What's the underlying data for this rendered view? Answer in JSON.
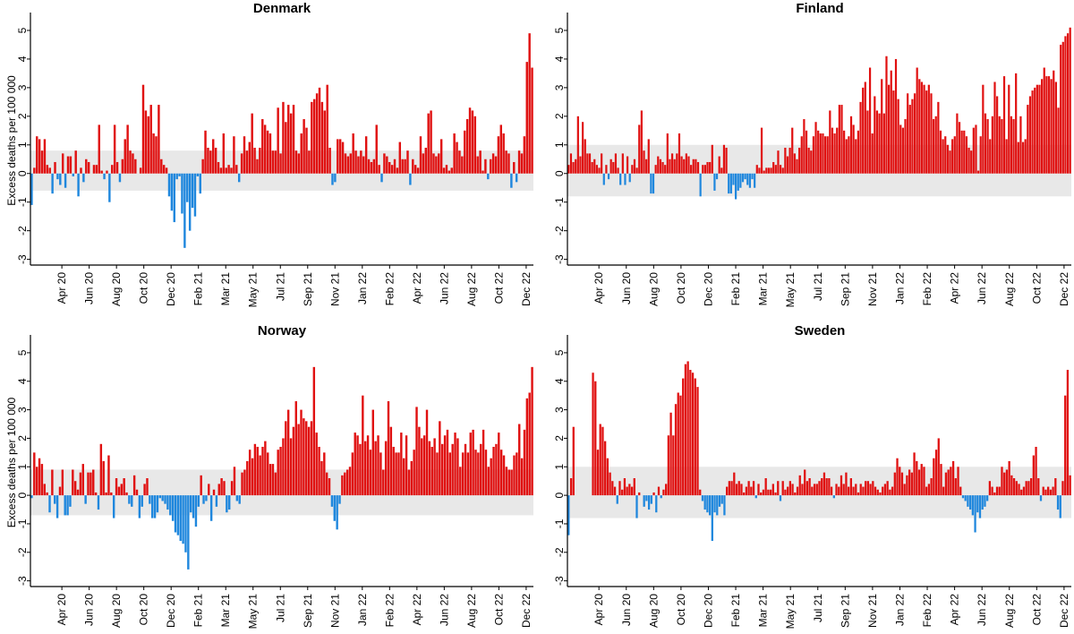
{
  "colors": {
    "positive": "#e01010",
    "negative": "#1f87dd",
    "band": "#e8e8e8",
    "axis": "#000000"
  },
  "chart_data": [
    {
      "type": "bar",
      "title": "Denmark",
      "ylabel": "Excess deaths per 100 000",
      "xlabel": "",
      "ylim": [
        -3.2,
        5.5
      ],
      "yticks": [
        "-3",
        "-2",
        "-1",
        "0",
        "1",
        "2",
        "3",
        "4",
        "5"
      ],
      "xticks": [
        "Apr 20",
        "Jun 20",
        "Aug 20",
        "Oct 20",
        "Dec 20",
        "Feb 21",
        "Mar 21",
        "May 21",
        "Jul 21",
        "Sep 21",
        "Nov 21",
        "Jan 22",
        "Feb 22",
        "Apr 22",
        "Jun 22",
        "Aug 22",
        "Oct 22",
        "Dec 22"
      ],
      "band": {
        "upper": 0.8,
        "lower": -0.6
      },
      "values": [
        -1.1,
        0.2,
        1.3,
        1.2,
        0.8,
        1.2,
        0.3,
        0.2,
        -0.7,
        0.4,
        -0.2,
        -0.4,
        0.7,
        -0.5,
        0.6,
        0.6,
        -0.1,
        0.8,
        -0.8,
        0.2,
        -0.3,
        0.5,
        0.4,
        0.0,
        0.3,
        0.3,
        1.7,
        0.1,
        -0.2,
        0.1,
        -1.0,
        0.3,
        1.7,
        0.4,
        -0.3,
        0.5,
        1.2,
        1.7,
        0.8,
        0.7,
        0.5,
        0.0,
        0.2,
        3.1,
        2.2,
        2.0,
        2.4,
        1.4,
        1.3,
        2.4,
        0.5,
        0.3,
        0.2,
        -0.8,
        -1.3,
        -1.7,
        -0.2,
        -0.1,
        -1.4,
        -2.6,
        -1.0,
        -2.0,
        -1.2,
        -1.5,
        -0.1,
        -0.7,
        0.5,
        1.5,
        0.9,
        0.8,
        1.2,
        0.9,
        0.4,
        0.2,
        1.4,
        0.2,
        0.3,
        0.2,
        1.3,
        0.3,
        -0.3,
        0.7,
        1.3,
        0.8,
        1.1,
        2.1,
        0.9,
        0.5,
        0.9,
        1.9,
        1.7,
        1.5,
        1.4,
        0.8,
        0.8,
        2.3,
        0.7,
        2.5,
        1.8,
        2.4,
        2.1,
        2.4,
        0.8,
        0.7,
        1.4,
        1.9,
        1.6,
        0.8,
        2.5,
        2.6,
        2.8,
        3.0,
        2.5,
        2.2,
        3.1,
        0.9,
        -0.4,
        -0.3,
        1.2,
        1.2,
        1.1,
        0.7,
        0.6,
        0.7,
        1.4,
        0.8,
        0.6,
        0.8,
        0.6,
        1.3,
        0.5,
        0.4,
        0.5,
        1.7,
        0.3,
        -0.3,
        0.7,
        0.6,
        0.4,
        0.3,
        0.5,
        0.2,
        1.1,
        0.5,
        0.5,
        0.8,
        -0.4,
        0.5,
        0.3,
        0.2,
        1.3,
        0.7,
        0.9,
        2.1,
        2.2,
        0.7,
        0.6,
        0.7,
        1.2,
        0.2,
        0.3,
        0.1,
        0.2,
        1.4,
        1.1,
        0.8,
        0.6,
        1.5,
        1.9,
        2.3,
        2.2,
        2.0,
        0.6,
        0.8,
        0.1,
        0.5,
        -0.2,
        0.5,
        0.7,
        0.6,
        1.3,
        1.7,
        1.4,
        0.8,
        0.7,
        -0.5,
        0.4,
        -0.3,
        0.8,
        0.7,
        1.3,
        3.9,
        4.9,
        3.7
      ]
    },
    {
      "type": "bar",
      "title": "Finland",
      "ylabel": "",
      "xlabel": "",
      "ylim": [
        -3.2,
        5.5
      ],
      "yticks": [
        "-3",
        "-2",
        "-1",
        "0",
        "1",
        "2",
        "3",
        "4",
        "5"
      ],
      "xticks": [
        "Apr 20",
        "Jun 20",
        "Aug 20",
        "Oct 20",
        "Dec 20",
        "Feb 21",
        "Mar 21",
        "May 21",
        "Jul 21",
        "Sep 21",
        "Nov 21",
        "Jan 22",
        "Feb 22",
        "Apr 22",
        "Jun 22",
        "Aug 22",
        "Oct 22",
        "Dec 22"
      ],
      "band": {
        "upper": 1.0,
        "lower": -0.8
      },
      "values": [
        0.3,
        0.7,
        0.4,
        0.5,
        2.0,
        0.6,
        1.8,
        1.2,
        0.7,
        0.7,
        0.4,
        0.5,
        0.3,
        0.2,
        0.7,
        -0.4,
        0.3,
        -0.2,
        0.5,
        0.4,
        0.7,
        0.2,
        -0.4,
        0.7,
        -0.4,
        0.6,
        -0.3,
        0.3,
        0.5,
        0.2,
        1.7,
        2.2,
        0.8,
        0.5,
        1.2,
        -0.7,
        -0.7,
        0.3,
        0.6,
        0.5,
        0.4,
        0.3,
        1.4,
        0.5,
        0.7,
        0.5,
        0.7,
        1.4,
        0.6,
        0.5,
        0.7,
        0.6,
        0.3,
        0.5,
        0.5,
        0.4,
        -0.8,
        0.3,
        0.3,
        0.4,
        0.4,
        1.0,
        -0.6,
        -0.2,
        0.6,
        0.2,
        1.0,
        0.9,
        -0.7,
        -0.7,
        -0.4,
        -0.9,
        -0.6,
        -0.5,
        -0.3,
        -0.2,
        -0.4,
        -0.5,
        -0.2,
        -0.5,
        0.3,
        0.2,
        1.6,
        0.1,
        0.2,
        0.2,
        0.2,
        0.4,
        0.3,
        0.8,
        0.3,
        0.2,
        0.9,
        0.6,
        0.9,
        1.6,
        0.7,
        0.5,
        0.9,
        1.3,
        1.9,
        1.5,
        0.9,
        0.8,
        1.3,
        1.8,
        1.5,
        1.4,
        1.4,
        1.3,
        1.3,
        2.2,
        1.6,
        1.4,
        1.6,
        2.4,
        2.4,
        1.5,
        1.2,
        1.3,
        2.0,
        1.7,
        1.2,
        1.5,
        2.5,
        3.0,
        3.2,
        2.2,
        3.7,
        1.4,
        2.7,
        2.2,
        2.1,
        3.3,
        2.1,
        4.1,
        3.1,
        3.6,
        2.9,
        4.0,
        2.6,
        1.7,
        1.6,
        1.9,
        2.8,
        2.4,
        2.6,
        2.8,
        3.7,
        3.3,
        3.2,
        3.1,
        2.9,
        3.1,
        2.8,
        1.9,
        2.0,
        2.5,
        1.5,
        1.2,
        1.3,
        1.0,
        0.8,
        1.2,
        1.3,
        2.1,
        1.8,
        1.5,
        1.5,
        1.3,
        0.9,
        0.8,
        1.6,
        1.7,
        0.1,
        1.3,
        3.1,
        2.1,
        1.9,
        1.2,
        2.0,
        3.2,
        2.7,
        2.0,
        1.9,
        3.4,
        1.2,
        3.1,
        2.0,
        1.9,
        3.5,
        1.1,
        2.0,
        1.1,
        1.2,
        2.4,
        2.7,
        2.9,
        3.0,
        3.1,
        3.1,
        3.3,
        3.7,
        3.4,
        3.4,
        3.3,
        3.6,
        3.2,
        2.3,
        4.5,
        4.6,
        4.8,
        4.9,
        5.1
      ]
    },
    {
      "type": "bar",
      "title": "Norway",
      "ylabel": "Excess deaths per 100 000",
      "xlabel": "",
      "ylim": [
        -3.2,
        5.5
      ],
      "yticks": [
        "-3",
        "-2",
        "-1",
        "0",
        "1",
        "2",
        "3",
        "4",
        "5"
      ],
      "xticks": [
        "Apr 20",
        "Jun 20",
        "Aug 20",
        "Oct 20",
        "Dec 20",
        "Feb 21",
        "Mar 21",
        "May 21",
        "Jul 21",
        "Sep 21",
        "Nov 21",
        "Jan 22",
        "Feb 22",
        "Apr 22",
        "Jun 22",
        "Aug 22",
        "Oct 22",
        "Dec 22"
      ],
      "band": {
        "upper": 0.9,
        "lower": -0.7
      },
      "values": [
        -0.1,
        1.5,
        1.0,
        1.3,
        1.1,
        0.4,
        0.1,
        -0.6,
        0.9,
        -0.3,
        -0.8,
        0.3,
        0.9,
        -0.7,
        -0.7,
        -0.4,
        0.9,
        0.5,
        0.2,
        0.8,
        1.1,
        -0.3,
        0.8,
        0.8,
        0.9,
        0.1,
        -0.5,
        1.8,
        1.2,
        0.1,
        1.4,
        0.1,
        -0.8,
        0.6,
        0.3,
        0.4,
        0.6,
        0.1,
        -0.3,
        -0.4,
        0.7,
        0.2,
        -0.8,
        -0.4,
        0.4,
        0.6,
        -0.3,
        -0.8,
        -0.8,
        -0.6,
        -0.1,
        -0.2,
        -0.3,
        -0.5,
        -0.7,
        -0.9,
        -1.3,
        -1.4,
        -1.6,
        -1.7,
        -2.0,
        -2.6,
        -0.6,
        -0.8,
        -1.1,
        -0.4,
        0.7,
        -0.3,
        -0.2,
        0.4,
        -0.9,
        0.2,
        -0.4,
        0.4,
        0.6,
        0.5,
        -0.6,
        -0.5,
        0.5,
        1.0,
        -0.2,
        -0.3,
        0.8,
        0.9,
        1.2,
        1.6,
        1.3,
        1.8,
        1.7,
        1.4,
        1.7,
        1.9,
        1.5,
        1.1,
        1.1,
        0.8,
        1.6,
        1.7,
        2.0,
        2.6,
        3.0,
        2.0,
        2.4,
        3.3,
        2.5,
        3.0,
        2.7,
        2.6,
        2.4,
        2.6,
        4.5,
        2.2,
        1.7,
        1.2,
        1.5,
        0.8,
        0.6,
        -0.4,
        -0.9,
        -1.2,
        -0.3,
        0.7,
        0.8,
        0.9,
        1.0,
        1.5,
        2.2,
        2.1,
        1.8,
        3.5,
        1.9,
        2.1,
        1.6,
        3.0,
        1.9,
        2.1,
        1.5,
        0.9,
        1.9,
        3.3,
        2.4,
        1.7,
        1.5,
        1.5,
        2.2,
        1.3,
        2.1,
        0.9,
        1.2,
        1.6,
        3.1,
        2.4,
        2.0,
        2.1,
        3.0,
        1.9,
        1.7,
        2.0,
        1.5,
        2.6,
        1.8,
        2.1,
        2.3,
        1.5,
        1.8,
        2.2,
        2.0,
        1.0,
        1.5,
        1.8,
        1.5,
        2.2,
        2.3,
        1.6,
        1.5,
        1.8,
        2.3,
        1.6,
        1.0,
        1.3,
        1.7,
        1.8,
        2.2,
        1.6,
        1.4,
        1.0,
        0.9,
        0.9,
        1.4,
        1.5,
        2.5,
        1.3,
        2.3,
        3.4,
        3.6,
        4.5
      ]
    },
    {
      "type": "bar",
      "title": "Sweden",
      "ylabel": "",
      "xlabel": "",
      "ylim": [
        -3.2,
        5.5
      ],
      "yticks": [
        "-3",
        "-2",
        "-1",
        "0",
        "1",
        "2",
        "3",
        "4",
        "5"
      ],
      "xticks": [
        "Apr 20",
        "Jun 20",
        "Aug 20",
        "Oct 20",
        "Dec 20",
        "Feb 21",
        "Mar 21",
        "May 21",
        "Jul 21",
        "Sep 21",
        "Nov 21",
        "Jan 22",
        "Feb 22",
        "Apr 22",
        "Jun 22",
        "Aug 22",
        "Oct 22",
        "Dec 22"
      ],
      "band": {
        "upper": 1.0,
        "lower": -0.8
      },
      "values": [
        -1.4,
        0.6,
        2.4,
        0.0,
        0.0,
        0.0,
        0.0,
        0.0,
        0.0,
        0.0,
        4.3,
        4.0,
        1.6,
        2.5,
        2.4,
        1.9,
        1.3,
        0.8,
        0.5,
        0.3,
        -0.3,
        0.5,
        0.2,
        0.6,
        0.3,
        0.4,
        0.3,
        0.6,
        -0.8,
        0.1,
        0.0,
        -0.4,
        -0.2,
        -0.5,
        -0.3,
        0.1,
        -0.6,
        0.3,
        -0.1,
        0.2,
        0.4,
        2.1,
        2.9,
        2.1,
        3.2,
        3.6,
        3.5,
        4.1,
        4.6,
        4.7,
        4.4,
        4.3,
        4.1,
        3.8,
        0.2,
        -0.2,
        -0.5,
        -0.6,
        -0.7,
        -1.6,
        -0.6,
        -0.7,
        -0.4,
        -0.3,
        -0.7,
        0.3,
        0.5,
        0.5,
        0.8,
        0.4,
        0.5,
        0.4,
        0.1,
        0.3,
        0.5,
        0.3,
        0.5,
        -0.1,
        0.4,
        0.1,
        0.2,
        0.6,
        0.2,
        0.2,
        0.4,
        0.1,
        0.5,
        -0.2,
        0.5,
        0.2,
        0.3,
        0.5,
        0.4,
        0.1,
        0.3,
        0.7,
        0.4,
        0.9,
        0.5,
        0.6,
        0.3,
        0.4,
        0.4,
        0.5,
        0.6,
        0.8,
        0.6,
        0.6,
        0.3,
        -0.1,
        0.4,
        0.3,
        0.7,
        0.4,
        0.8,
        0.3,
        0.6,
        0.3,
        0.4,
        0.1,
        0.4,
        0.3,
        0.5,
        0.5,
        0.4,
        0.5,
        0.3,
        0.2,
        0.1,
        0.3,
        0.4,
        0.5,
        0.2,
        0.3,
        0.8,
        1.3,
        1.0,
        0.8,
        0.4,
        0.7,
        0.9,
        0.8,
        1.5,
        1.2,
        0.9,
        1.1,
        1.0,
        0.3,
        0.4,
        0.6,
        1.3,
        1.6,
        2.0,
        1.1,
        0.3,
        0.8,
        0.9,
        1.0,
        1.2,
        0.6,
        1.0,
        0.3,
        -0.1,
        -0.2,
        -0.4,
        -0.5,
        -0.7,
        -1.3,
        -0.6,
        -0.8,
        -0.5,
        -0.4,
        -0.2,
        0.5,
        0.3,
        0.1,
        0.3,
        0.3,
        1.0,
        0.8,
        0.9,
        1.2,
        0.7,
        0.6,
        0.5,
        0.4,
        0.2,
        0.3,
        0.5,
        0.5,
        0.6,
        1.4,
        1.7,
        0.6,
        -0.2,
        0.3,
        0.2,
        0.3,
        0.2,
        0.3,
        0.6,
        -0.5,
        -0.8,
        0.5,
        3.5,
        4.4,
        0.7
      ]
    }
  ]
}
